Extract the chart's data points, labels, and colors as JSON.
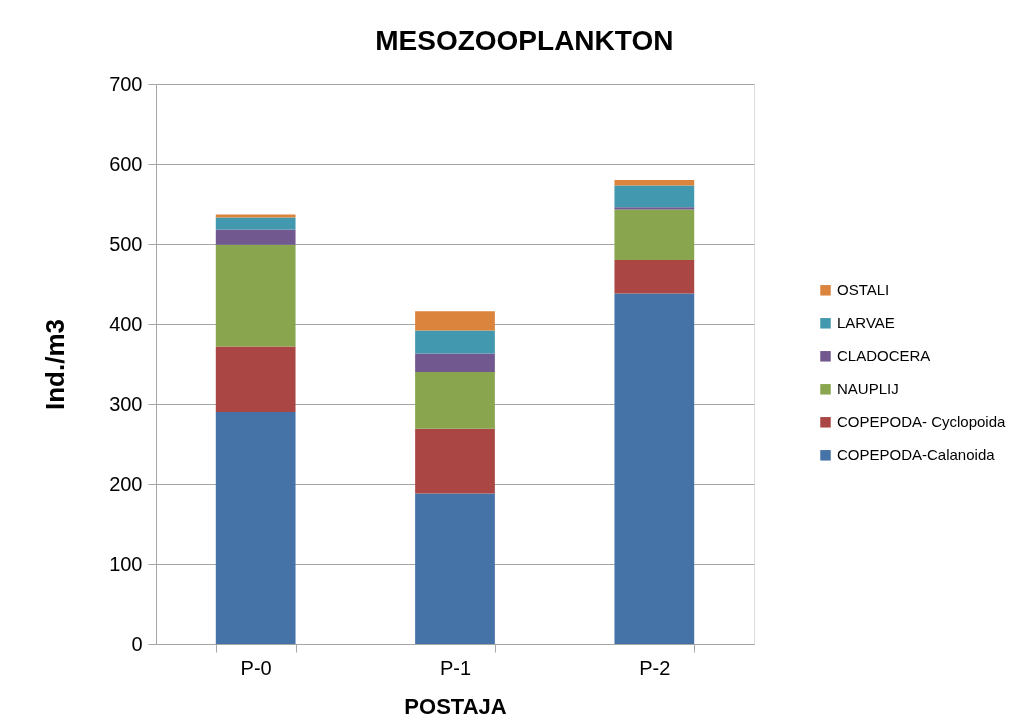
{
  "chart_data": {
    "type": "bar",
    "title": "MESOZOOPLANKTON",
    "xlabel": "POSTAJA",
    "ylabel": "Ind./m3",
    "categories": [
      "P-0",
      "P-1",
      "P-2"
    ],
    "stacked": true,
    "series": [
      {
        "name": "COPEPODA-Calanoida",
        "color": "#4572a7",
        "values": [
          290,
          188,
          438
        ]
      },
      {
        "name": "COPEPODA- Cyclopoida",
        "color": "#aa4643",
        "values": [
          82,
          81,
          42
        ]
      },
      {
        "name": "NAUPLIJ",
        "color": "#89a54e",
        "values": [
          127,
          71,
          63
        ]
      },
      {
        "name": "CLADOCERA",
        "color": "#71588f",
        "values": [
          19,
          23,
          3
        ]
      },
      {
        "name": "LARVAE",
        "color": "#4198af",
        "values": [
          15,
          29,
          27
        ]
      },
      {
        "name": "OSTALI",
        "color": "#db843d",
        "values": [
          4,
          24,
          7
        ]
      }
    ],
    "ylim": [
      0,
      700
    ],
    "yticks": [
      0,
      100,
      200,
      300,
      400,
      500,
      600,
      700
    ],
    "grid": "y",
    "legend": "right"
  }
}
